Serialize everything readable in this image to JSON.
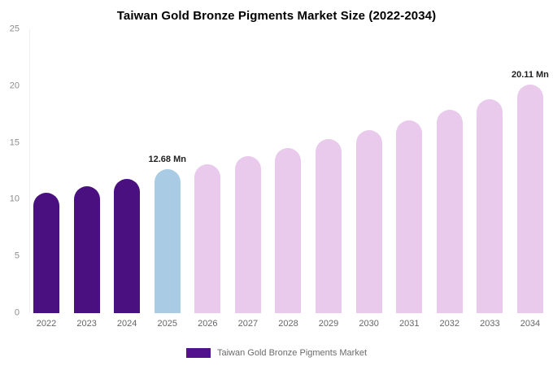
{
  "title": "Taiwan Gold Bronze Pigments Market Size (2022-2034)",
  "legend": {
    "label": "Taiwan Gold Bronze Pigments Market",
    "swatch_color": "#52128e"
  },
  "colors": {
    "dark": "#4a1080",
    "highlight": "#a9cce4",
    "light": "#e9c9ec"
  },
  "chart_data": {
    "type": "bar",
    "title": "Taiwan Gold Bronze Pigments Market Size (2022-2034)",
    "unit": "Mn",
    "categories": [
      "2022",
      "2023",
      "2024",
      "2025",
      "2026",
      "2027",
      "2028",
      "2029",
      "2030",
      "2031",
      "2032",
      "2033",
      "2034"
    ],
    "values": [
      10.6,
      11.2,
      11.8,
      12.68,
      13.1,
      13.8,
      14.55,
      15.3,
      16.1,
      17.0,
      17.9,
      18.85,
      20.11
    ],
    "ylim": [
      0,
      25
    ],
    "yticks": [
      0,
      5,
      10,
      15,
      20,
      25
    ],
    "bar_color_groups": [
      "dark",
      "dark",
      "dark",
      "highlight",
      "light",
      "light",
      "light",
      "light",
      "light",
      "light",
      "light",
      "light",
      "light"
    ],
    "annotations": [
      {
        "index": 3,
        "text": "12.68 Mn"
      },
      {
        "index": 12,
        "text": "20.11 Mn"
      }
    ],
    "xlabel": "",
    "ylabel": "",
    "grid": false,
    "legend_position": "bottom"
  }
}
